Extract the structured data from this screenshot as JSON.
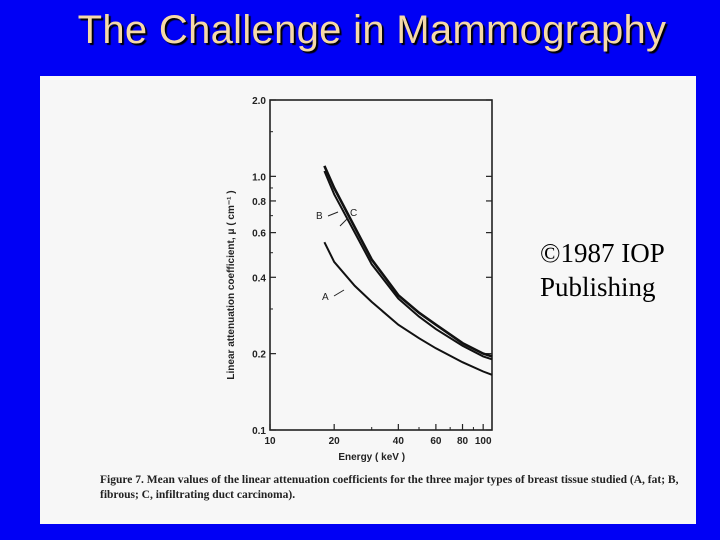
{
  "slide": {
    "title": "The Challenge in Mammography",
    "copyright": "©1987 IOP Publishing"
  },
  "figure": {
    "caption_lead": "Figure 7.",
    "caption_text": "Mean values of the linear attenuation coefficients for the three major types of breast tissue studied (A, fat; B, fibrous; C, infiltrating duct carcinoma)."
  },
  "chart_data": {
    "type": "line",
    "xlabel": "Energy ( keV )",
    "ylabel": "Linear attenuation coefficient, μ ( cm⁻¹ )",
    "x_scale": "log",
    "y_scale": "log",
    "xlim": [
      10,
      110
    ],
    "ylim": [
      0.1,
      2.0
    ],
    "x_ticks": [
      {
        "value": 10,
        "label": "10"
      },
      {
        "value": 20,
        "label": "20"
      },
      {
        "value": 40,
        "label": "40"
      },
      {
        "value": 60,
        "label": "60"
      },
      {
        "value": 80,
        "label": "80"
      },
      {
        "value": 100,
        "label": "100"
      }
    ],
    "y_ticks": [
      {
        "value": 0.1,
        "label": "0.1"
      },
      {
        "value": 0.2,
        "label": "0.2"
      },
      {
        "value": 0.4,
        "label": "0.4"
      },
      {
        "value": 0.6,
        "label": "0.6"
      },
      {
        "value": 0.8,
        "label": "0.8"
      },
      {
        "value": 1.0,
        "label": "1.0"
      },
      {
        "value": 2.0,
        "label": "2.0"
      }
    ],
    "series": [
      {
        "name": "A",
        "x": [
          18,
          20,
          25,
          30,
          40,
          50,
          60,
          80,
          100,
          110
        ],
        "y": [
          0.55,
          0.46,
          0.37,
          0.32,
          0.26,
          0.23,
          0.21,
          0.185,
          0.17,
          0.165
        ]
      },
      {
        "name": "B",
        "x": [
          18,
          20,
          25,
          30,
          40,
          50,
          60,
          80,
          100,
          110
        ],
        "y": [
          1.05,
          0.85,
          0.6,
          0.45,
          0.33,
          0.28,
          0.25,
          0.215,
          0.195,
          0.19
        ]
      },
      {
        "name": "C",
        "x": [
          18,
          20,
          25,
          30,
          40,
          50,
          60,
          80,
          100,
          110
        ],
        "y": [
          1.1,
          0.9,
          0.63,
          0.47,
          0.34,
          0.29,
          0.26,
          0.22,
          0.2,
          0.195
        ]
      }
    ],
    "curve_labels": [
      "B",
      "C",
      "A"
    ],
    "grid": false
  }
}
